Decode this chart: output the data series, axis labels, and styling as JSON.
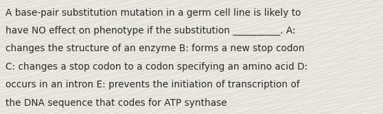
{
  "text_lines": [
    "A base-pair substitution mutation in a germ cell line is likely to",
    "have NO effect on phenotype if the substitution __________. A:",
    "changes the structure of an enzyme B: forms a new stop codon",
    "C: changes a stop codon to a codon specifying an amino acid D:",
    "occurs in an intron E: prevents the initiation of transcription of",
    "the DNA sequence that codes for ATP synthase"
  ],
  "bg_color": "#e8e8e0",
  "text_color": "#2a2a2a",
  "font_size": 9.8,
  "fig_width": 5.58,
  "fig_height": 1.67,
  "wave_color": "#d0cfc5",
  "wave_color2": "#f0f0ea"
}
